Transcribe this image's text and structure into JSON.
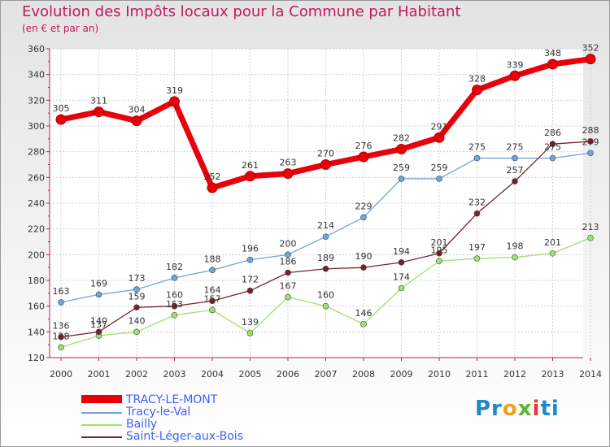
{
  "chart_data": {
    "type": "line",
    "title": "Evolution des Impôts locaux pour la Commune par Habitant",
    "subtitle": "(en € et par an)",
    "x": [
      "2000",
      "2001",
      "2002",
      "2003",
      "2004",
      "2005",
      "2006",
      "2007",
      "2008",
      "2009",
      "2010",
      "2011",
      "2012",
      "2013",
      "2014"
    ],
    "ylim": [
      120,
      360
    ],
    "yticks": [
      120,
      140,
      160,
      180,
      200,
      220,
      240,
      260,
      280,
      300,
      320,
      340,
      360
    ],
    "grid": true,
    "series": [
      {
        "name": "TRACY-LE-MONT",
        "color": "#e8000b",
        "values": [
          305,
          311,
          304,
          319,
          252,
          261,
          263,
          270,
          276,
          282,
          291,
          328,
          339,
          348,
          352
        ]
      },
      {
        "name": "Tracy-le-Val",
        "color": "#6fa5d8",
        "values": [
          163,
          169,
          173,
          182,
          188,
          196,
          200,
          214,
          229,
          259,
          259,
          275,
          275,
          275,
          279
        ]
      },
      {
        "name": "Bailly",
        "color": "#9be36b",
        "values": [
          128,
          137,
          140,
          153,
          157,
          139,
          167,
          160,
          146,
          174,
          195,
          197,
          198,
          201,
          213
        ]
      },
      {
        "name": "Saint-Léger-aux-Bois",
        "color": "#7a1f2b",
        "values": [
          136,
          140,
          159,
          160,
          164,
          172,
          186,
          189,
          190,
          194,
          201,
          232,
          257,
          286,
          288
        ]
      }
    ]
  },
  "legend": [
    {
      "label": "TRACY-LE-MONT",
      "color": "#e8000b"
    },
    {
      "label": "Tracy-le-Val",
      "color": "#6fa5d8"
    },
    {
      "label": "Bailly",
      "color": "#9be36b"
    },
    {
      "label": "Saint-Léger-aux-Bois",
      "color": "#7a1f2b"
    }
  ],
  "logo": {
    "p1": "Pr",
    "p2": "o",
    "p3": "x",
    "p4": "i",
    "p5": "ti"
  }
}
